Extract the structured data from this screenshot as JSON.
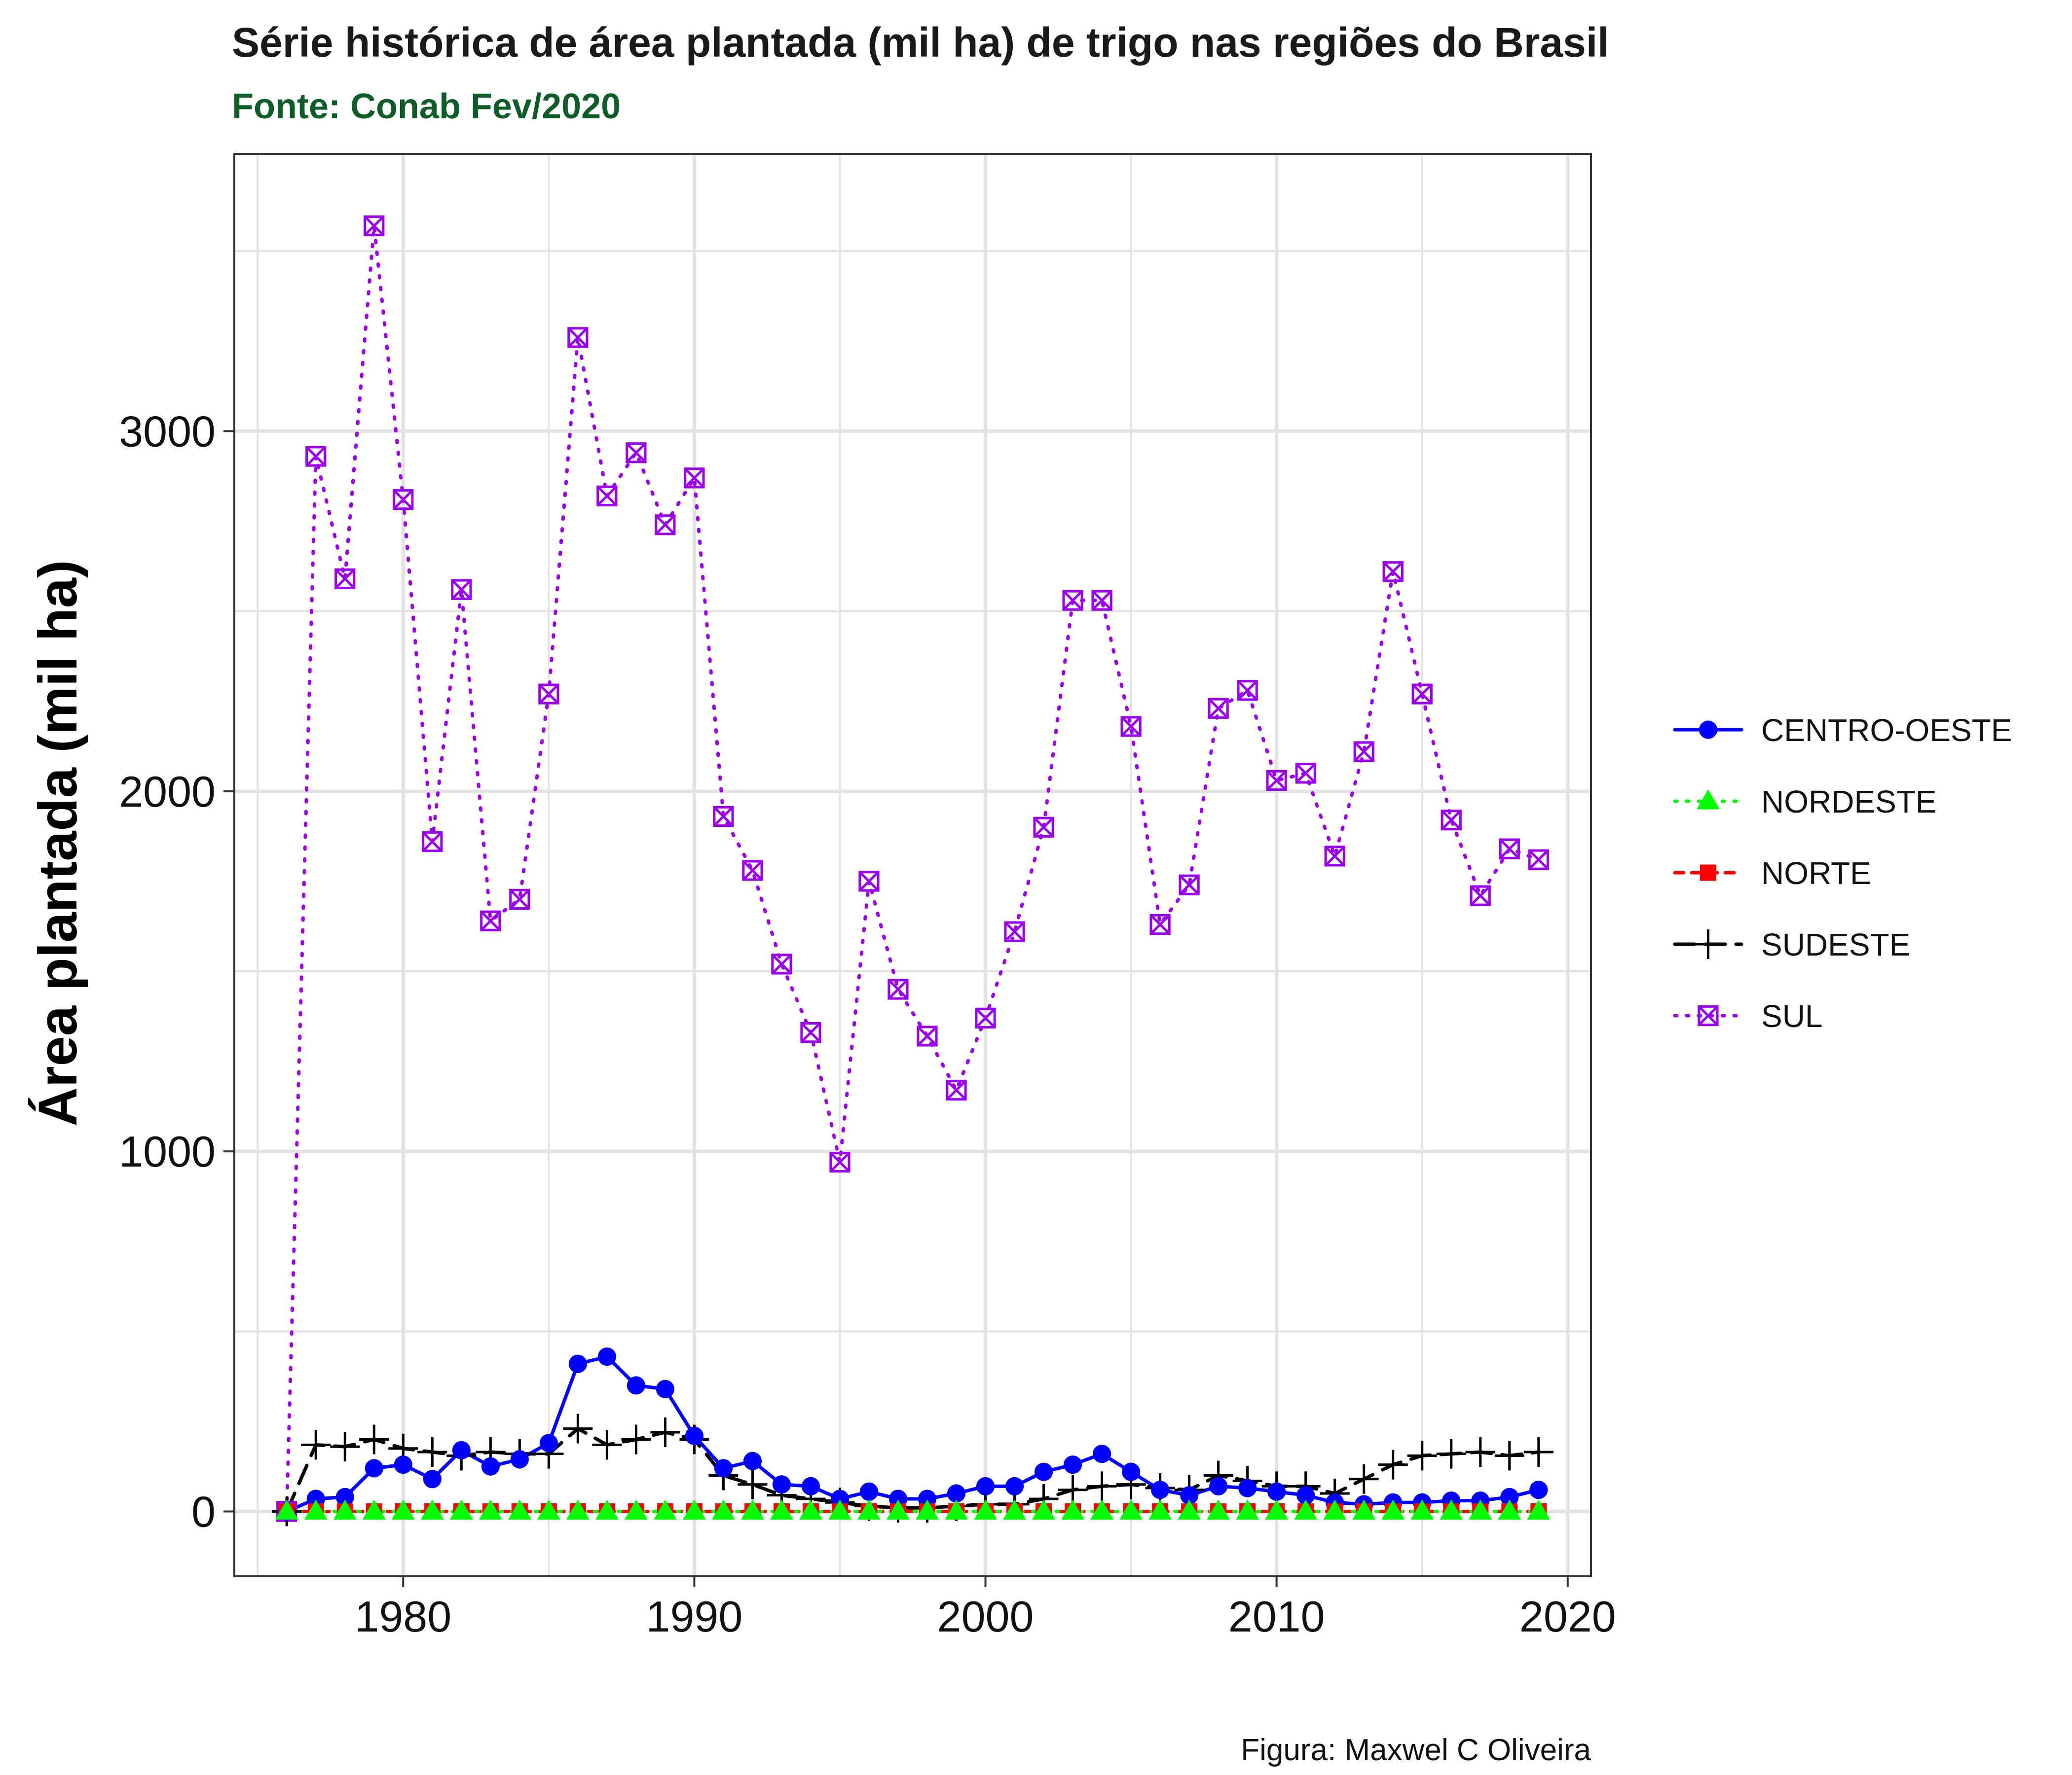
{
  "chart_data": {
    "type": "line",
    "title": "Série histórica de área plantada (mil ha) de trigo nas regiões do Brasil",
    "subtitle": "Fonte: Conab Fev/2020",
    "xlabel": "",
    "ylabel": "Área plantada (mil ha)",
    "caption": "Figura: Maxwel C Oliveira",
    "xlim": [
      1974.2,
      2020.8
    ],
    "ylim": [
      -180,
      3770
    ],
    "x_ticks": [
      1980,
      1990,
      2000,
      2010,
      2020
    ],
    "x_tick_labels": [
      "1980",
      "1990",
      "2000",
      "2010",
      "2020"
    ],
    "y_ticks": [
      0,
      1000,
      2000,
      3000
    ],
    "y_tick_labels": [
      "0",
      "1000",
      "2000",
      "3000"
    ],
    "grid": true,
    "legend_position": "right",
    "x": [
      1976,
      1977,
      1978,
      1979,
      1980,
      1981,
      1982,
      1983,
      1984,
      1985,
      1986,
      1987,
      1988,
      1989,
      1990,
      1991,
      1992,
      1993,
      1994,
      1995,
      1996,
      1997,
      1998,
      1999,
      2000,
      2001,
      2002,
      2003,
      2004,
      2005,
      2006,
      2007,
      2008,
      2009,
      2010,
      2011,
      2012,
      2013,
      2014,
      2015,
      2016,
      2017,
      2018,
      2019
    ],
    "series": [
      {
        "name": "CENTRO-OESTE",
        "color": "#0000ff",
        "marker": "circle",
        "dash": "solid",
        "values": [
          0,
          35,
          40,
          120,
          130,
          90,
          170,
          125,
          145,
          190,
          410,
          430,
          350,
          340,
          210,
          120,
          140,
          75,
          70,
          35,
          55,
          35,
          35,
          50,
          70,
          70,
          110,
          130,
          160,
          110,
          60,
          45,
          70,
          65,
          55,
          45,
          25,
          20,
          25,
          25,
          30,
          30,
          40,
          60
        ]
      },
      {
        "name": "NORDESTE",
        "color": "#00ff00",
        "marker": "triangle",
        "dash": "dotted",
        "values": [
          0,
          0,
          0,
          0,
          0,
          0,
          0,
          0,
          0,
          0,
          0,
          0,
          0,
          0,
          0,
          0,
          0,
          0,
          0,
          0,
          0,
          0,
          0,
          0,
          0,
          0,
          0,
          0,
          0,
          0,
          0,
          0,
          0,
          0,
          0,
          0,
          0,
          0,
          0,
          0,
          0,
          0,
          0,
          0
        ]
      },
      {
        "name": "NORTE",
        "color": "#ff0000",
        "marker": "square",
        "dash": "dashed",
        "values": [
          0,
          0,
          0,
          0,
          0,
          0,
          0,
          0,
          0,
          0,
          0,
          0,
          0,
          0,
          0,
          0,
          0,
          0,
          0,
          0,
          0,
          0,
          0,
          0,
          0,
          0,
          0,
          0,
          0,
          0,
          0,
          0,
          0,
          0,
          0,
          0,
          0,
          0,
          0,
          0,
          0,
          0,
          0,
          0
        ]
      },
      {
        "name": "SUDESTE",
        "color": "#000000",
        "marker": "plus",
        "dash": "longdash",
        "values": [
          0,
          185,
          180,
          200,
          175,
          165,
          155,
          165,
          160,
          160,
          230,
          185,
          200,
          220,
          200,
          100,
          75,
          45,
          35,
          25,
          15,
          10,
          10,
          15,
          20,
          20,
          35,
          60,
          70,
          75,
          65,
          60,
          100,
          85,
          70,
          70,
          50,
          90,
          130,
          155,
          160,
          165,
          155,
          165
        ]
      },
      {
        "name": "SUL",
        "color": "#9b00ee",
        "marker": "square-x",
        "dash": "dotted",
        "values": [
          0,
          2930,
          2590,
          3570,
          2810,
          1860,
          2560,
          1640,
          1700,
          2270,
          3260,
          2820,
          2940,
          2740,
          2870,
          1930,
          1780,
          1520,
          1330,
          970,
          1750,
          1450,
          1320,
          1170,
          1370,
          1610,
          1900,
          2530,
          2530,
          2180,
          1630,
          1740,
          2230,
          2280,
          2030,
          2050,
          1820,
          2110,
          2610,
          2270,
          1920,
          1710,
          1840,
          1810
        ]
      }
    ]
  }
}
